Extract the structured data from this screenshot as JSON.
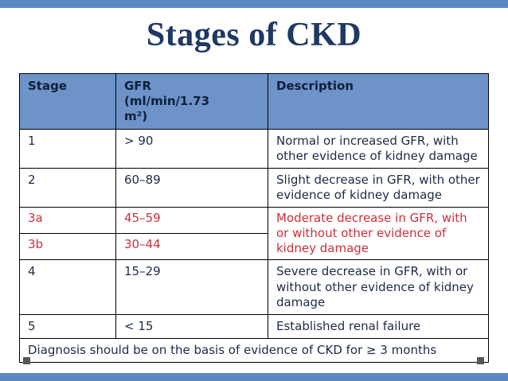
{
  "slide": {
    "title": "Stages of CKD"
  },
  "table": {
    "headers": {
      "stage": "Stage",
      "gfr": "GFR\n(ml/min/1.73\nm²)",
      "description": "Description"
    },
    "rows": [
      {
        "stage": "1",
        "gfr": "> 90",
        "description": "Normal or increased GFR, with other evidence of kidney damage"
      },
      {
        "stage": "2",
        "gfr": "60–89",
        "description": "Slight decrease in GFR, with other evidence of kidney damage"
      },
      {
        "stage": "3a",
        "gfr": "45–59",
        "description": "Moderate decrease in GFR, with or without other evidence of kidney damage"
      },
      {
        "stage": "3b",
        "gfr": "30–44"
      },
      {
        "stage": "4",
        "gfr": "15–29",
        "description": "Severe decrease in GFR, with or without other evidence of kidney damage"
      },
      {
        "stage": "5",
        "gfr": "< 15",
        "description": "Established renal failure"
      }
    ],
    "footnote": "Diagnosis should be on the basis of evidence of CKD for ≥ 3 months"
  },
  "colors": {
    "accent_bar": "#5b87c3",
    "header_bg": "#6e93c8",
    "highlight_text": "#cd2f3a",
    "body_text": "#1e2a44",
    "title_text": "#1f3864"
  }
}
